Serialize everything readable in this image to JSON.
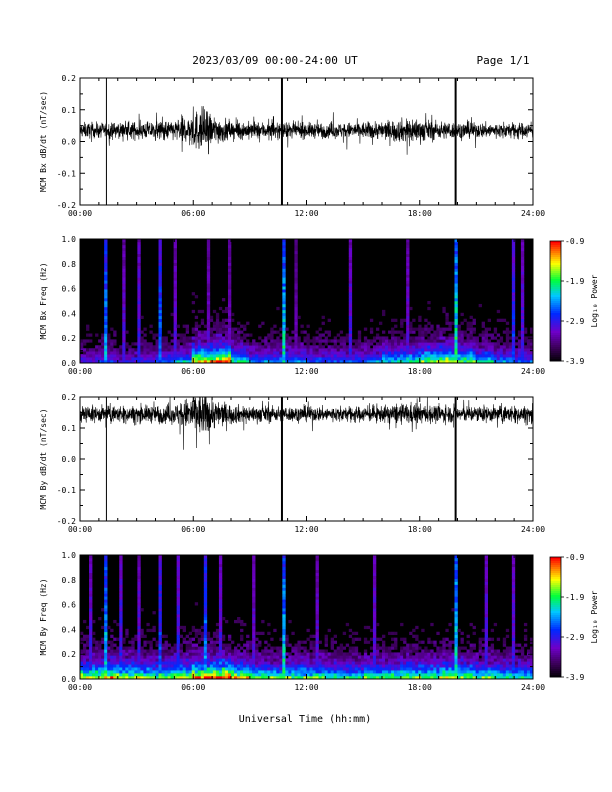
{
  "header": {
    "date_range": "2023/03/09  00:00-24:00 UT",
    "page": "Page 1/1"
  },
  "xlabel": "Universal Time (hh:mm)",
  "time_ticks": [
    "00:00",
    "06:00",
    "12:00",
    "18:00",
    "24:00"
  ],
  "chart_data": [
    {
      "type": "line",
      "ylabel": "MCM Bx dB/dt (nT/sec)",
      "xlim": [
        0,
        24
      ],
      "ylim": [
        -0.2,
        0.2
      ],
      "y_ticks": [
        "-0.2",
        "-0.1",
        "0.0",
        "0.1",
        "0.2"
      ],
      "baseline": 0.035,
      "noise_amp": 0.028,
      "x": [
        0,
        1,
        2,
        3,
        4,
        5,
        6,
        6.5,
        7,
        8,
        9,
        10,
        11,
        12,
        13,
        14,
        15,
        16,
        17,
        17.5,
        18,
        19,
        20,
        21,
        22,
        23,
        24
      ],
      "noise_scale": [
        1.0,
        1.0,
        1.0,
        1.1,
        1.2,
        1.3,
        2.4,
        3.0,
        2.0,
        1.3,
        1.1,
        1.1,
        1.0,
        1.0,
        1.0,
        1.0,
        1.1,
        1.2,
        1.5,
        1.8,
        1.5,
        1.2,
        1.1,
        1.0,
        1.0,
        1.0,
        1.0
      ],
      "spikes": [
        {
          "t": 1.4,
          "y": [
            -0.2,
            0.2
          ]
        },
        {
          "t": 10.7,
          "y": [
            -0.2,
            0.2
          ]
        },
        {
          "t": 19.9,
          "y": [
            -0.2,
            0.2
          ]
        }
      ]
    },
    {
      "type": "heatmap",
      "ylabel": "MCM Bx Freq (Hz)",
      "xlim": [
        0,
        24
      ],
      "ylim": [
        0,
        1.0
      ],
      "y_ticks": [
        "0.0",
        "0.2",
        "0.4",
        "0.6",
        "0.8",
        "1.0"
      ],
      "colorbar": {
        "label": "Log₁₀ Power",
        "ticks": [
          "-0.9",
          "-1.9",
          "-2.9",
          "-3.9"
        ],
        "range": [
          -3.9,
          -0.9
        ]
      },
      "activity": [
        0.3,
        0.35,
        0.3,
        0.35,
        0.4,
        0.5,
        0.8,
        0.9,
        0.6,
        0.45,
        0.45,
        0.45,
        0.4,
        0.4,
        0.4,
        0.45,
        0.55,
        0.6,
        0.7,
        0.75,
        0.65,
        0.55,
        0.45,
        0.4,
        0.35
      ],
      "streaks": [
        {
          "t": 1.3,
          "strength": 0.8
        },
        {
          "t": 2.2,
          "strength": 0.45
        },
        {
          "t": 3.1,
          "strength": 0.5
        },
        {
          "t": 4.2,
          "strength": 0.7
        },
        {
          "t": 4.9,
          "strength": 0.45
        },
        {
          "t": 6.7,
          "strength": 0.4
        },
        {
          "t": 7.9,
          "strength": 0.4
        },
        {
          "t": 10.7,
          "strength": 0.9
        },
        {
          "t": 11.3,
          "strength": 0.35
        },
        {
          "t": 14.3,
          "strength": 0.5
        },
        {
          "t": 17.2,
          "strength": 0.45
        },
        {
          "t": 19.9,
          "strength": 0.95
        },
        {
          "t": 22.8,
          "strength": 0.6
        },
        {
          "t": 23.4,
          "strength": 0.5
        }
      ]
    },
    {
      "type": "line",
      "ylabel": "MCM By dB/dt (nT/sec)",
      "xlim": [
        0,
        24
      ],
      "ylim": [
        -0.2,
        0.2
      ],
      "y_ticks": [
        "-0.2",
        "-0.1",
        "0.0",
        "0.1",
        "0.2"
      ],
      "baseline": 0.145,
      "noise_amp": 0.028,
      "x": [
        0,
        1,
        2,
        3,
        4,
        5,
        6,
        6.5,
        7,
        8,
        9,
        10,
        11,
        12,
        13,
        14,
        15,
        16,
        17,
        17.5,
        18,
        19,
        20,
        21,
        22,
        23,
        24
      ],
      "noise_scale": [
        1.1,
        1.1,
        1.1,
        1.1,
        1.2,
        1.3,
        2.6,
        3.3,
        2.1,
        1.3,
        1.1,
        1.1,
        1.0,
        1.0,
        1.0,
        1.0,
        1.0,
        1.1,
        1.3,
        1.5,
        1.3,
        1.2,
        1.1,
        1.1,
        1.1,
        1.1,
        1.1
      ],
      "spikes": [
        {
          "t": 1.4,
          "y": [
            -0.2,
            0.2
          ]
        },
        {
          "t": 10.7,
          "y": [
            -0.2,
            0.2
          ]
        },
        {
          "t": 19.9,
          "y": [
            -0.2,
            0.2
          ]
        }
      ]
    },
    {
      "type": "heatmap",
      "ylabel": "MCM By Freq (Hz)",
      "xlim": [
        0,
        24
      ],
      "ylim": [
        0,
        1.0
      ],
      "y_ticks": [
        "0.0",
        "0.2",
        "0.4",
        "0.6",
        "0.8",
        "1.0"
      ],
      "colorbar": {
        "label": "Log₁₀ Power",
        "ticks": [
          "-0.9",
          "-1.9",
          "-2.9",
          "-3.9"
        ],
        "range": [
          -3.9,
          -0.9
        ]
      },
      "activity": [
        0.75,
        0.8,
        0.75,
        0.7,
        0.7,
        0.75,
        0.9,
        0.95,
        0.8,
        0.7,
        0.65,
        0.65,
        0.65,
        0.6,
        0.6,
        0.65,
        0.65,
        0.7,
        0.7,
        0.75,
        0.7,
        0.65,
        0.6,
        0.6,
        0.6
      ],
      "streaks": [
        {
          "t": 0.4,
          "strength": 0.5
        },
        {
          "t": 1.3,
          "strength": 0.85
        },
        {
          "t": 2.0,
          "strength": 0.55
        },
        {
          "t": 3.0,
          "strength": 0.5
        },
        {
          "t": 4.2,
          "strength": 0.65
        },
        {
          "t": 5.1,
          "strength": 0.55
        },
        {
          "t": 6.6,
          "strength": 0.75
        },
        {
          "t": 7.4,
          "strength": 0.5
        },
        {
          "t": 9.1,
          "strength": 0.45
        },
        {
          "t": 10.7,
          "strength": 0.9
        },
        {
          "t": 12.4,
          "strength": 0.45
        },
        {
          "t": 15.5,
          "strength": 0.5
        },
        {
          "t": 19.9,
          "strength": 0.95
        },
        {
          "t": 21.5,
          "strength": 0.5
        },
        {
          "t": 22.9,
          "strength": 0.5
        }
      ]
    }
  ]
}
